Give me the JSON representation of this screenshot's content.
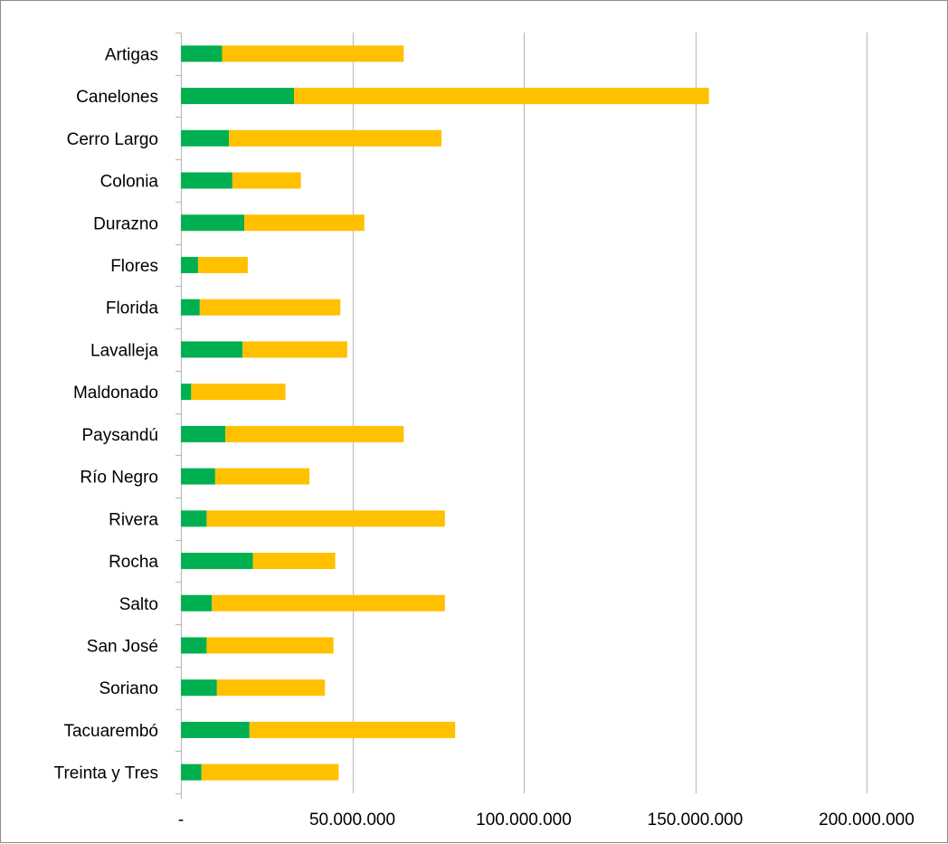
{
  "chart_data": {
    "type": "bar",
    "orientation": "horizontal",
    "stacked": true,
    "title": "",
    "xlabel": "",
    "ylabel": "",
    "categories": [
      "Artigas",
      "Canelones",
      "Cerro Largo",
      "Colonia",
      "Durazno",
      "Flores",
      "Florida",
      "Lavalleja",
      "Maldonado",
      "Paysandú",
      "Río Negro",
      "Rivera",
      "Rocha",
      "Salto",
      "San José",
      "Soriano",
      "Tacuarembó",
      "Treinta y Tres"
    ],
    "series": [
      {
        "color": "#00b050",
        "values": [
          12000000,
          33000000,
          14000000,
          15000000,
          18500000,
          5000000,
          5500000,
          18000000,
          3000000,
          13000000,
          10000000,
          7500000,
          21000000,
          9000000,
          7500000,
          10500000,
          20000000,
          6000000
        ]
      },
      {
        "color": "#ffc000",
        "values": [
          53000000,
          121000000,
          62000000,
          20000000,
          35000000,
          14500000,
          41000000,
          30500000,
          27500000,
          52000000,
          27500000,
          69500000,
          24000000,
          68000000,
          37000000,
          31500000,
          60000000,
          40000000
        ]
      }
    ],
    "xlim": [
      0,
      200000000
    ],
    "x_ticks": [
      0,
      50000000,
      100000000,
      150000000,
      200000000
    ],
    "x_tick_labels": [
      "-",
      "50.000.000",
      "100.000.000",
      "150.000.000",
      "200.000.000"
    ],
    "grid": "vertical",
    "legend": "none"
  }
}
